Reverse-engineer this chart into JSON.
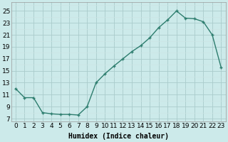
{
  "x": [
    0,
    1,
    2,
    3,
    4,
    5,
    6,
    7,
    8,
    9,
    10,
    11,
    12,
    13,
    14,
    15,
    16,
    17,
    18,
    19,
    20,
    21,
    22,
    23
  ],
  "y": [
    12.0,
    10.5,
    10.5,
    8.0,
    7.8,
    7.7,
    7.7,
    7.6,
    9.0,
    13.0,
    14.5,
    15.8,
    17.0,
    18.2,
    19.2,
    20.5,
    22.2,
    23.5,
    25.0,
    23.8,
    23.7,
    23.2,
    21.0,
    15.5
  ],
  "line_color": "#2d7d6e",
  "marker": "+",
  "bg_color": "#cceaea",
  "grid_major_color": "#aacccc",
  "grid_minor_color": "#cce4e4",
  "xlabel": "Humidex (Indice chaleur)",
  "xlim": [
    -0.5,
    23.5
  ],
  "ylim": [
    6.5,
    26.5
  ],
  "yticks": [
    7,
    9,
    11,
    13,
    15,
    17,
    19,
    21,
    23,
    25
  ],
  "xticks": [
    0,
    1,
    2,
    3,
    4,
    5,
    6,
    7,
    8,
    9,
    10,
    11,
    12,
    13,
    14,
    15,
    16,
    17,
    18,
    19,
    20,
    21,
    22,
    23
  ],
  "xlabel_fontsize": 7,
  "tick_fontsize": 6.5,
  "linewidth": 1.0,
  "markersize": 3.5,
  "markeredgewidth": 1.0
}
